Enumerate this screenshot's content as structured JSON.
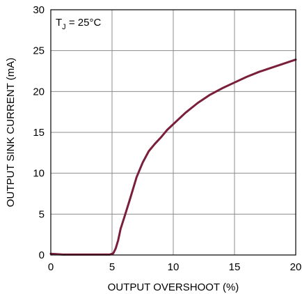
{
  "chart_data": {
    "type": "line",
    "title": "",
    "xlabel": "OUTPUT OVERSHOOT (%)",
    "ylabel": "OUTPUT SINK CURRENT (mA)",
    "xlim": [
      0,
      20
    ],
    "ylim": [
      0,
      30
    ],
    "x_ticks": [
      0,
      5,
      10,
      15,
      20
    ],
    "y_ticks": [
      0,
      5,
      10,
      15,
      20,
      25,
      30
    ],
    "grid": true,
    "annotation": {
      "base": "T",
      "subscript": "J",
      "rest": " = 25°C"
    },
    "series_color": "#7a1f3a",
    "series": [
      {
        "x": [
          0,
          1,
          2,
          3,
          4,
          4.8,
          5.1,
          5.3,
          5.5,
          5.7,
          6.0,
          6.5,
          7.0,
          7.5,
          8.0,
          8.5,
          9.0,
          9.5,
          10.0,
          11.0,
          12.0,
          13.0,
          14.0,
          15.0,
          16.0,
          17.0,
          18.0,
          19.0,
          20.0
        ],
        "y": [
          0.15,
          0.05,
          0.05,
          0.05,
          0.05,
          0.05,
          0.2,
          0.8,
          1.8,
          3.2,
          4.6,
          7.0,
          9.5,
          11.3,
          12.7,
          13.6,
          14.4,
          15.3,
          16.0,
          17.4,
          18.6,
          19.6,
          20.4,
          21.1,
          21.8,
          22.4,
          22.9,
          23.4,
          23.9
        ]
      }
    ]
  }
}
